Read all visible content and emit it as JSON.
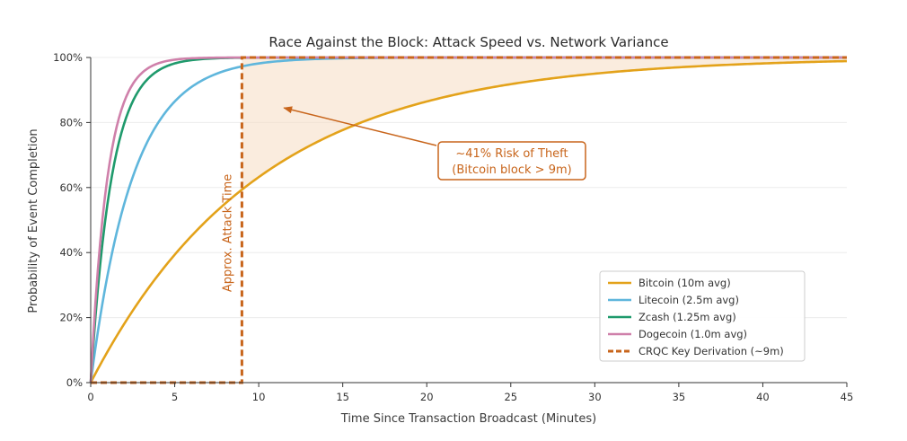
{
  "chart_data": {
    "type": "line",
    "title": "Race Against the Block: Attack Speed vs. Network Variance",
    "xlabel": "Time Since Transaction Broadcast (Minutes)",
    "ylabel": "Probability of Event Completion",
    "xlim": [
      0,
      45
    ],
    "ylim": [
      0,
      1
    ],
    "x_ticks": [
      0,
      5,
      10,
      15,
      20,
      25,
      30,
      35,
      40,
      45
    ],
    "y_ticks": [
      0,
      0.2,
      0.4,
      0.6,
      0.8,
      1.0
    ],
    "y_tick_labels": [
      "0%",
      "20%",
      "40%",
      "60%",
      "80%",
      "100%"
    ],
    "grid": "horizontal",
    "legend_position": "lower-right",
    "series": [
      {
        "name": "Bitcoin (10m avg)",
        "mean_block_minutes": 10,
        "color": "#e3a21a",
        "style": "solid"
      },
      {
        "name": "Litecoin (2.5m avg)",
        "mean_block_minutes": 2.5,
        "color": "#5fb6dc",
        "style": "solid"
      },
      {
        "name": "Zcash (1.25m avg)",
        "mean_block_minutes": 1.25,
        "color": "#1f9a6c",
        "style": "solid"
      },
      {
        "name": "Dogecoin (1.0m avg)",
        "mean_block_minutes": 1.0,
        "color": "#cf80aa",
        "style": "solid"
      },
      {
        "name": "CRQC Key Derivation (~9m)",
        "x": [
          0,
          9,
          9,
          45
        ],
        "y": [
          0,
          0,
          1,
          1
        ],
        "color": "#c8651b",
        "style": "dashed"
      }
    ],
    "attack_time_label": "Approx. Attack Time",
    "annotation": {
      "line1": "~41% Risk of Theft",
      "line2": "(Bitcoin block > 9m)",
      "arrow_target": [
        11.5,
        0.845
      ],
      "color": "#c8651b"
    },
    "shaded_region": {
      "from_x": 9,
      "to_x": 45,
      "between": [
        "CRQC Key Derivation (~9m)",
        "Bitcoin (10m avg)"
      ],
      "color": "#f5dcc3"
    }
  }
}
